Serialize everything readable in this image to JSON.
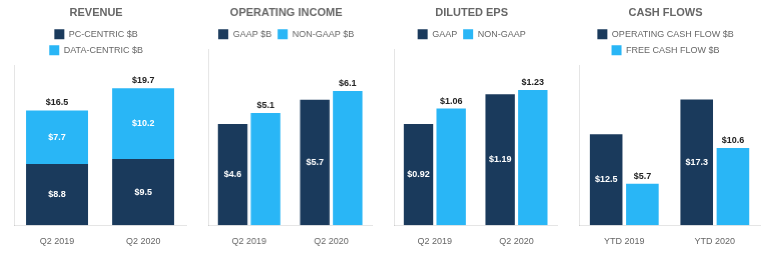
{
  "chart_data": [
    {
      "type": "bar",
      "title": "REVENUE",
      "categories": [
        "Q2 2019",
        "Q2 2020"
      ],
      "series": [
        {
          "name": "PC-CENTRIC $B",
          "color": "#1a3a5c",
          "values": [
            8.8,
            9.5
          ],
          "value_labels": [
            "$8.8",
            "$9.5"
          ]
        },
        {
          "name": "DATA-CENTRIC $B",
          "color": "#29b6f6",
          "values": [
            7.7,
            10.2
          ],
          "value_labels": [
            "$7.7",
            "$10.2"
          ]
        }
      ],
      "totals": [
        16.5,
        19.7
      ],
      "total_labels": [
        "$16.5",
        "$19.7"
      ],
      "stacked": true,
      "data_labels": true,
      "ylim": [
        0,
        23
      ],
      "tick_labels": "x",
      "grid": false,
      "legend": "top"
    },
    {
      "type": "bar",
      "title": "OPERATING INCOME",
      "categories": [
        "Q2 2019",
        "Q2 2020"
      ],
      "series": [
        {
          "name": "GAAP $B",
          "color": "#1a3a5c",
          "values": [
            4.6,
            5.7
          ],
          "value_labels": [
            "$4.6",
            "$5.7"
          ]
        },
        {
          "name": "NON-GAAP $B",
          "color": "#29b6f6",
          "values": [
            5.1,
            6.1
          ],
          "value_labels": [
            "$5.1",
            "$6.1"
          ]
        }
      ],
      "data_labels": true,
      "ylim": [
        0,
        8
      ],
      "tick_labels": "x",
      "grid": false,
      "legend": "top"
    },
    {
      "type": "bar",
      "title": "DILUTED EPS",
      "categories": [
        "Q2 2019",
        "Q2 2020"
      ],
      "series": [
        {
          "name": "GAAP",
          "color": "#1a3a5c",
          "values": [
            0.92,
            1.19
          ],
          "value_labels": [
            "$0.92",
            "$1.19"
          ]
        },
        {
          "name": "NON-GAAP",
          "color": "#29b6f6",
          "values": [
            1.06,
            1.23
          ],
          "value_labels": [
            "$1.06",
            "$1.23"
          ]
        }
      ],
      "data_labels": true,
      "ylim": [
        0,
        1.6
      ],
      "tick_labels": "x",
      "grid": false,
      "legend": "top"
    },
    {
      "type": "bar",
      "title": "CASH FLOWS",
      "categories": [
        "YTD 2019",
        "YTD 2020"
      ],
      "series": [
        {
          "name": "OPERATING CASH FLOW $B",
          "color": "#1a3a5c",
          "values": [
            12.5,
            17.3
          ],
          "value_labels": [
            "$12.5",
            "$17.3"
          ]
        },
        {
          "name": "FREE CASH FLOW $B",
          "color": "#29b6f6",
          "values": [
            5.7,
            10.6
          ],
          "value_labels": [
            "$5.7",
            "$10.6"
          ]
        }
      ],
      "data_labels": true,
      "ylim": [
        0,
        22
      ],
      "tick_labels": "x",
      "grid": false,
      "legend": "top"
    }
  ]
}
